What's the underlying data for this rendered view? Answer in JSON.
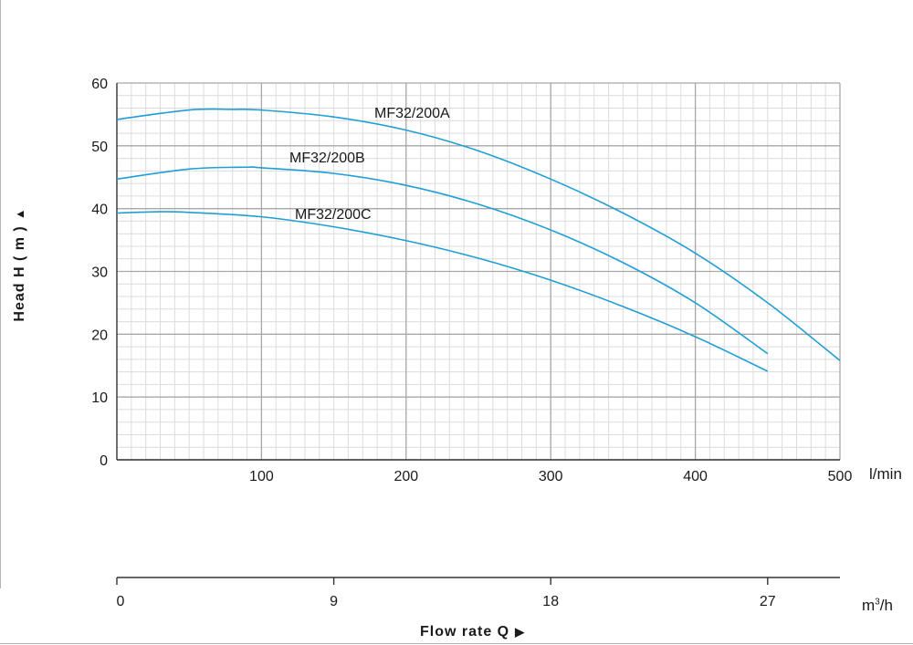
{
  "chart_data": {
    "type": "line",
    "xlabel": "Flow rate Q",
    "ylabel": "Head H ( m )",
    "x_unit": "l/min",
    "x2_unit": "m³/h",
    "xlim": [
      0,
      500
    ],
    "ylim": [
      0,
      60
    ],
    "x_ticks": [
      100,
      200,
      300,
      400,
      500
    ],
    "y_ticks": [
      0,
      10,
      20,
      30,
      40,
      50,
      60
    ],
    "x2_ticks": [
      0,
      9,
      18,
      27
    ],
    "grid": true,
    "series": [
      {
        "name": "MF32/200A",
        "x": [
          0,
          50,
          80,
          100,
          150,
          200,
          250,
          300,
          350,
          400,
          450,
          500
        ],
        "y": [
          54.2,
          55.7,
          55.8,
          55.7,
          54.6,
          52.5,
          49.2,
          44.7,
          39.3,
          32.9,
          25.0,
          15.8
        ]
      },
      {
        "name": "MF32/200B",
        "x": [
          0,
          50,
          90,
          100,
          150,
          200,
          250,
          300,
          350,
          400,
          450
        ],
        "y": [
          44.7,
          46.3,
          46.6,
          46.5,
          45.6,
          43.7,
          40.7,
          36.6,
          31.4,
          25.0,
          16.9
        ]
      },
      {
        "name": "MF32/200C",
        "x": [
          0,
          30,
          50,
          100,
          150,
          200,
          250,
          300,
          350,
          400,
          450
        ],
        "y": [
          39.3,
          39.5,
          39.4,
          38.7,
          37.1,
          34.9,
          32.1,
          28.6,
          24.4,
          19.6,
          14.1
        ]
      }
    ]
  },
  "colors": {
    "curve": "#1f9fd5",
    "grid_major": "#a8a8a8",
    "grid_minor": "#dcdcdc",
    "axis": "#333333"
  },
  "labels": {
    "ylabel_text": "Head H ( m )",
    "xlabel_text": "Flow rate Q",
    "m3h_prefix": "m",
    "m3h_sup": "3",
    "m3h_suffix": "/h"
  },
  "icons": {
    "up_arrow": "▲",
    "right_arrow": "▶"
  }
}
